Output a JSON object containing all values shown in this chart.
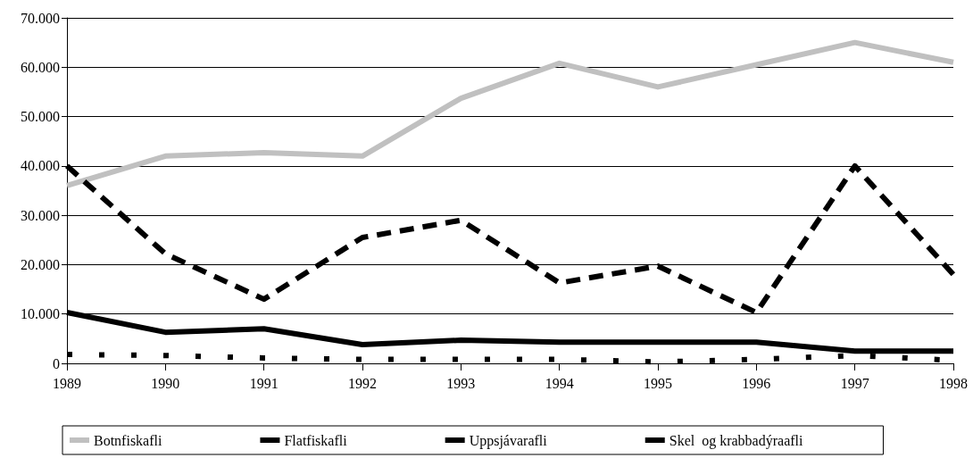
{
  "chart_data": {
    "type": "line",
    "categories": [
      "1989",
      "1990",
      "1991",
      "1992",
      "1993",
      "1994",
      "1995",
      "1996",
      "1997",
      "1998"
    ],
    "series": [
      {
        "name": "Botnfiskafli",
        "color": "#c0c0c0",
        "line_style": "solid",
        "values": [
          36000,
          42000,
          42700,
          42000,
          53700,
          60800,
          56000,
          60500,
          65000,
          61000
        ]
      },
      {
        "name": "Flatfiskafli",
        "color": "#000000",
        "line_style": "solid",
        "values": [
          10300,
          6300,
          7000,
          3800,
          4700,
          4300,
          4300,
          4300,
          2500,
          2500
        ]
      },
      {
        "name": "Uppsjávarafli",
        "color": "#000000",
        "line_style": "dashed",
        "values": [
          40000,
          22200,
          13000,
          25500,
          29000,
          16300,
          19700,
          10300,
          40000,
          18000
        ]
      },
      {
        "name": "Skel  og krabbadýraafli",
        "color": "#000000",
        "line_style": "dotted",
        "values": [
          1800,
          1600,
          1100,
          800,
          800,
          800,
          300,
          800,
          1600,
          600
        ]
      }
    ],
    "ylim": [
      0,
      70000
    ],
    "yticks": [
      {
        "value": 0,
        "label": "0"
      },
      {
        "value": 10000,
        "label": "10.000"
      },
      {
        "value": 20000,
        "label": "20.000"
      },
      {
        "value": 30000,
        "label": "30.000"
      },
      {
        "value": 40000,
        "label": "40.000"
      },
      {
        "value": 50000,
        "label": "50.000"
      },
      {
        "value": 60000,
        "label": "60.000"
      },
      {
        "value": 70000,
        "label": "70.000"
      }
    ],
    "grid": "y",
    "legend": "bottom",
    "marker": "none"
  }
}
